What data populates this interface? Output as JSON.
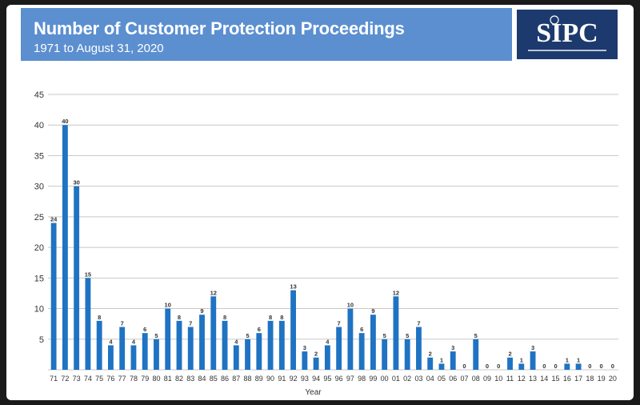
{
  "header": {
    "title": "Number of Customer Protection Proceedings",
    "subtitle": "1971 to August 31, 2020",
    "color": "#5b8fd0"
  },
  "logo": {
    "text": "SIPC",
    "background": "#1d3a6e"
  },
  "chart_data": {
    "type": "bar",
    "xlabel": "Year",
    "ylabel": "",
    "ylim": [
      0,
      45
    ],
    "yticks": [
      5,
      10,
      15,
      20,
      25,
      30,
      35,
      40,
      45
    ],
    "grid": true,
    "bar_color": "#1f73c2",
    "categories": [
      "71",
      "72",
      "73",
      "74",
      "75",
      "76",
      "77",
      "78",
      "79",
      "80",
      "81",
      "82",
      "83",
      "84",
      "85",
      "86",
      "87",
      "88",
      "89",
      "90",
      "91",
      "92",
      "93",
      "94",
      "95",
      "96",
      "97",
      "98",
      "99",
      "00",
      "01",
      "02",
      "03",
      "04",
      "05",
      "06",
      "07",
      "08",
      "09",
      "10",
      "11",
      "12",
      "13",
      "14",
      "15",
      "16",
      "17",
      "18",
      "19",
      "20"
    ],
    "values": [
      24,
      40,
      30,
      15,
      8,
      4,
      7,
      4,
      6,
      5,
      10,
      8,
      7,
      9,
      12,
      8,
      4,
      5,
      6,
      8,
      8,
      13,
      3,
      2,
      4,
      7,
      10,
      6,
      9,
      5,
      12,
      5,
      7,
      2,
      1,
      3,
      0,
      5,
      0,
      0,
      2,
      1,
      3,
      0,
      0,
      1,
      1,
      0,
      0,
      0
    ]
  }
}
